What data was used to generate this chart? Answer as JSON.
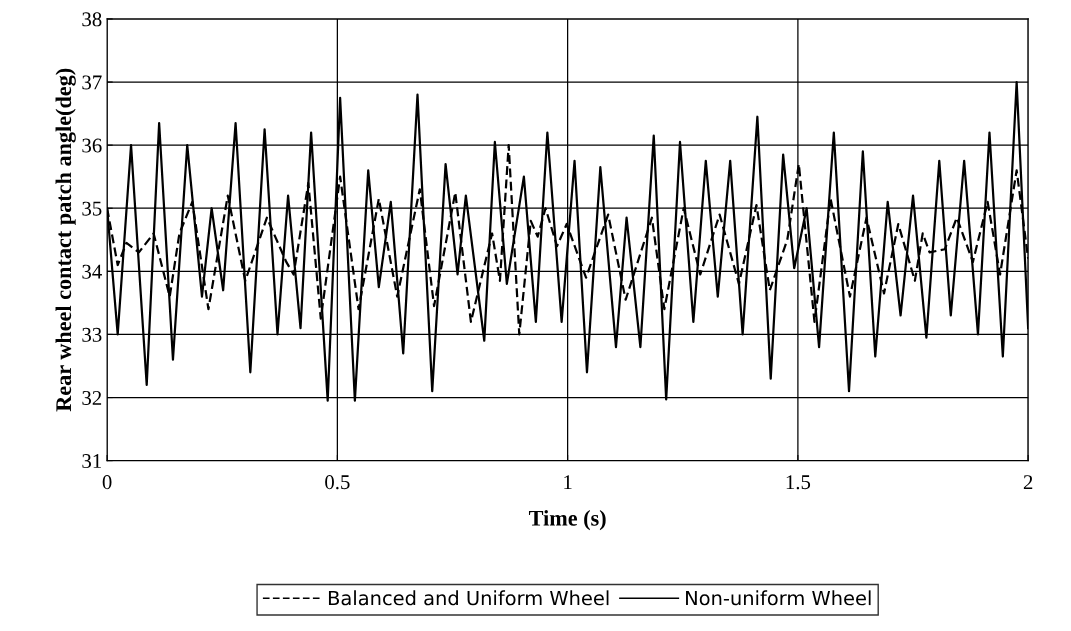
{
  "chart_data": {
    "type": "line",
    "xlabel": "Time (s)",
    "ylabel": "Rear wheel contact patch angle(deg)",
    "xlim": [
      0,
      2
    ],
    "xticks": [
      0,
      0.5,
      1,
      1.5,
      2
    ],
    "ylim": [
      31,
      38
    ],
    "yticks": [
      31,
      32,
      33,
      34,
      35,
      36,
      37,
      38
    ],
    "grid": true,
    "legend": "bottom",
    "marker": "none",
    "series": [
      {
        "name": "Balanced and Uniform Wheel",
        "color": "#000000",
        "line_style": "dashed",
        "x": [
          0,
          0.023,
          0.042,
          0.069,
          0.101,
          0.136,
          0.157,
          0.185,
          0.22,
          0.262,
          0.3,
          0.347,
          0.389,
          0.405,
          0.437,
          0.464,
          0.506,
          0.546,
          0.59,
          0.63,
          0.679,
          0.71,
          0.756,
          0.79,
          0.836,
          0.853,
          0.872,
          0.895,
          0.92,
          0.935,
          0.952,
          0.977,
          0.998,
          1.04,
          1.088,
          1.126,
          1.183,
          1.21,
          1.252,
          1.288,
          1.33,
          1.372,
          1.41,
          1.439,
          1.477,
          1.502,
          1.536,
          1.571,
          1.613,
          1.649,
          1.687,
          1.718,
          1.754,
          1.771,
          1.786,
          1.819,
          1.845,
          1.88,
          1.912,
          1.939,
          1.975,
          2.0
        ],
        "values": [
          35.0,
          34.1,
          34.45,
          34.3,
          34.6,
          33.6,
          34.6,
          35.1,
          33.4,
          35.2,
          33.85,
          34.85,
          34.15,
          33.95,
          35.4,
          33.25,
          35.5,
          33.4,
          35.15,
          33.6,
          35.3,
          33.45,
          35.25,
          33.2,
          34.6,
          33.85,
          36.0,
          33.0,
          34.8,
          34.55,
          35.0,
          34.4,
          34.75,
          33.9,
          34.9,
          33.55,
          34.85,
          33.4,
          35.0,
          33.95,
          34.9,
          33.8,
          35.05,
          33.7,
          34.5,
          35.7,
          33.2,
          35.15,
          33.6,
          34.85,
          33.65,
          34.75,
          33.85,
          34.6,
          34.3,
          34.35,
          34.85,
          34.15,
          35.1,
          33.95,
          35.6,
          34.2
        ]
      },
      {
        "name": "Non-uniform Wheel",
        "color": "#000000",
        "line_style": "solid",
        "x": [
          0,
          0.023,
          0.052,
          0.086,
          0.113,
          0.143,
          0.174,
          0.206,
          0.227,
          0.252,
          0.279,
          0.311,
          0.342,
          0.37,
          0.393,
          0.42,
          0.443,
          0.479,
          0.506,
          0.538,
          0.567,
          0.59,
          0.616,
          0.643,
          0.674,
          0.706,
          0.735,
          0.761,
          0.779,
          0.819,
          0.842,
          0.868,
          0.905,
          0.931,
          0.956,
          0.987,
          1.015,
          1.042,
          1.071,
          1.105,
          1.128,
          1.158,
          1.187,
          1.214,
          1.244,
          1.273,
          1.3,
          1.326,
          1.353,
          1.38,
          1.412,
          1.441,
          1.468,
          1.492,
          1.519,
          1.546,
          1.578,
          1.611,
          1.641,
          1.668,
          1.695,
          1.723,
          1.75,
          1.779,
          1.807,
          1.832,
          1.861,
          1.891,
          1.916,
          1.945,
          1.975,
          2.0
        ],
        "values": [
          35.0,
          33.0,
          36.0,
          32.2,
          36.35,
          32.6,
          36.0,
          33.6,
          35.0,
          33.7,
          36.35,
          32.4,
          36.25,
          33.0,
          35.2,
          33.1,
          36.2,
          31.95,
          36.75,
          31.95,
          35.6,
          33.75,
          35.1,
          32.7,
          36.8,
          32.1,
          35.7,
          33.95,
          35.2,
          32.9,
          36.05,
          33.8,
          35.5,
          33.2,
          36.2,
          33.2,
          35.75,
          32.4,
          35.65,
          32.8,
          34.85,
          32.8,
          36.15,
          31.97,
          36.05,
          33.2,
          35.75,
          33.6,
          35.75,
          33.0,
          36.45,
          32.3,
          35.85,
          34.05,
          35.0,
          32.8,
          36.2,
          32.1,
          35.9,
          32.65,
          35.1,
          33.3,
          35.2,
          32.95,
          35.75,
          33.3,
          35.75,
          33.0,
          36.2,
          32.65,
          37.0,
          33.1
        ]
      }
    ]
  }
}
